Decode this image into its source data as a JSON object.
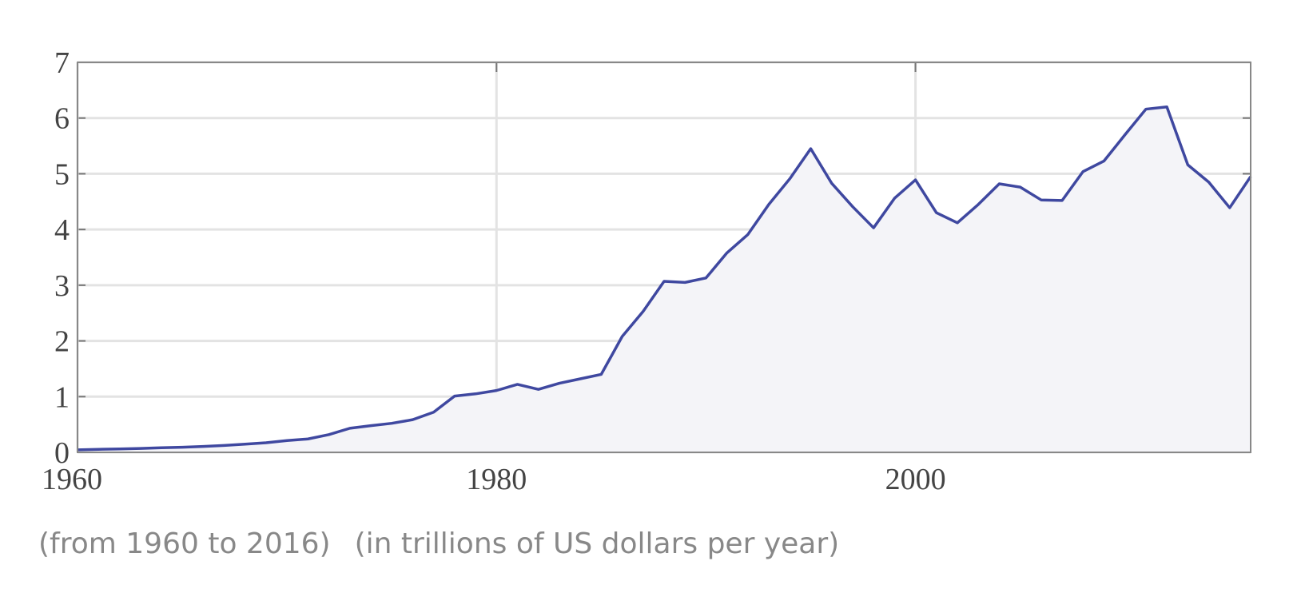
{
  "chart_data": {
    "type": "line",
    "x": [
      1960,
      1961,
      1962,
      1963,
      1964,
      1965,
      1966,
      1967,
      1968,
      1969,
      1970,
      1971,
      1972,
      1973,
      1974,
      1975,
      1976,
      1977,
      1978,
      1979,
      1980,
      1981,
      1982,
      1983,
      1984,
      1985,
      1986,
      1987,
      1988,
      1989,
      1990,
      1991,
      1992,
      1993,
      1994,
      1995,
      1996,
      1997,
      1998,
      1999,
      2000,
      2001,
      2002,
      2003,
      2004,
      2005,
      2006,
      2007,
      2008,
      2009,
      2010,
      2011,
      2012,
      2013,
      2014,
      2015,
      2016
    ],
    "series": [
      {
        "color": "#3f48a0",
        "values": [
          0.044,
          0.054,
          0.061,
          0.07,
          0.082,
          0.091,
          0.106,
          0.124,
          0.147,
          0.172,
          0.212,
          0.24,
          0.318,
          0.432,
          0.479,
          0.521,
          0.586,
          0.721,
          1.01,
          1.05,
          1.11,
          1.22,
          1.13,
          1.24,
          1.32,
          1.4,
          2.08,
          2.53,
          3.07,
          3.05,
          3.13,
          3.58,
          3.91,
          4.45,
          4.91,
          5.45,
          4.83,
          4.41,
          4.03,
          4.56,
          4.89,
          4.3,
          4.12,
          4.45,
          4.82,
          4.76,
          4.53,
          4.52,
          5.04,
          5.23,
          5.7,
          6.16,
          6.2,
          5.16,
          4.85,
          4.39,
          4.95
        ]
      }
    ],
    "xlim": [
      1960,
      2016
    ],
    "xticks": [
      1960,
      1980,
      2000
    ],
    "ylim": [
      0,
      7
    ],
    "yticks": [
      0,
      1,
      2,
      3,
      4,
      5,
      6,
      7
    ],
    "grid": true,
    "area_fill": "#f4f4f8",
    "caption": [
      "(from 1960 to 2016)",
      "(in trillions of US dollars per year)"
    ]
  }
}
